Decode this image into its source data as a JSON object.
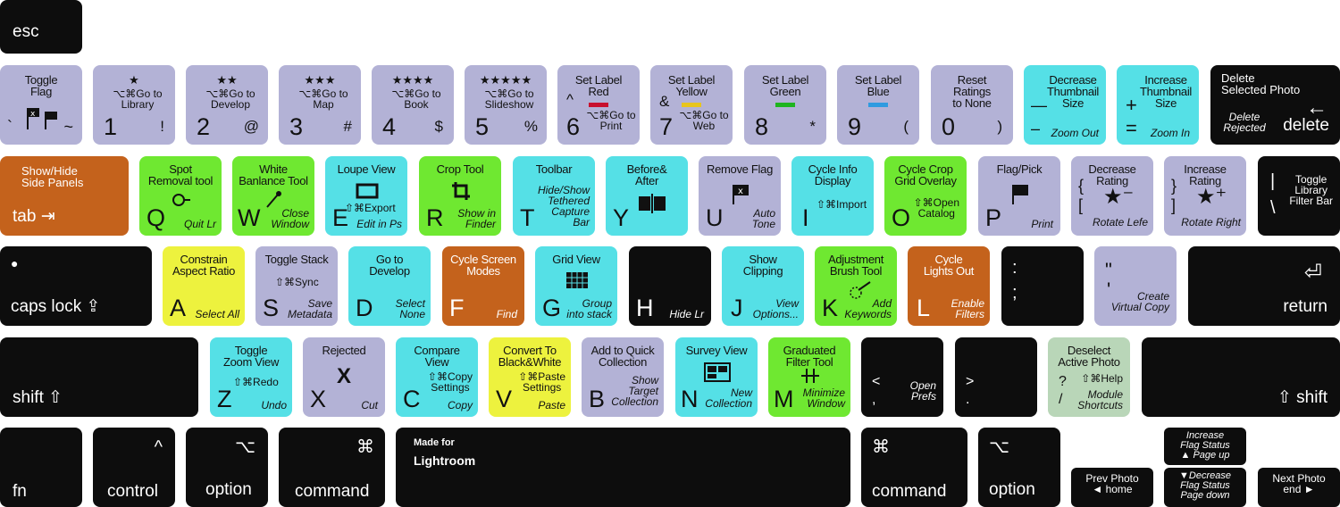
{
  "colors": {
    "black_key": "#0d0d0d",
    "purple_key": "#b3b2d6",
    "cyan_key": "#55e0e6",
    "green_key": "#6fe831",
    "yellow_key": "#edf23e",
    "orange_key": "#c4621c",
    "sage_key": "#b9d6b8",
    "red_label": "#c8102e",
    "yellow_label": "#e8c51e",
    "green_label": "#1fb51f",
    "blue_label": "#2f9be0"
  },
  "esc": {
    "label": "esc"
  },
  "row1": {
    "tilde": {
      "title": "Toggle\nFlag",
      "sym1": "`",
      "sym2": "~"
    },
    "k1": {
      "stars": "★",
      "shortcut": "⌥⌘Go to\nLibrary",
      "main": "1",
      "sym": "!"
    },
    "k2": {
      "stars": "★★",
      "shortcut": "⌥⌘Go to\nDevelop",
      "main": "2",
      "sym": "@"
    },
    "k3": {
      "stars": "★★★",
      "shortcut": "⌥⌘Go to\nMap",
      "main": "3",
      "sym": "#"
    },
    "k4": {
      "stars": "★★★★",
      "shortcut": "⌥⌘Go to\nBook",
      "main": "4",
      "sym": "$"
    },
    "k5": {
      "stars": "★★★★★",
      "shortcut": "⌥⌘Go to\nSlideshow",
      "main": "5",
      "sym": "%"
    },
    "k6": {
      "title": "Set Label\nRed",
      "sym": "^",
      "shortcut": "⌥⌘Go to\nPrint",
      "main": "6"
    },
    "k7": {
      "title": "Set Label\nYellow",
      "sym": "&",
      "shortcut": "⌥⌘Go to\nWeb",
      "main": "7"
    },
    "k8": {
      "title": "Set Label\nGreen",
      "main": "8",
      "sym": "*"
    },
    "k9": {
      "title": "Set Label\nBlue",
      "main": "9",
      "sym": "("
    },
    "k0": {
      "title": "Reset\nRatings\nto None",
      "main": "0",
      "sym": ")"
    },
    "minus": {
      "title": "Decrease\nThumbnail\nSize",
      "sym1": "—",
      "sym2": "–",
      "sub": "Zoom Out"
    },
    "equals": {
      "title": "Increase\nThumbnail\nSize",
      "sym1": "+",
      "sym2": "=",
      "sub": "Zoom In"
    },
    "delete": {
      "title": "Delete\nSelected Photo",
      "sub": "Delete\nRejected",
      "main": "delete",
      "arrow": "←"
    }
  },
  "row2": {
    "tab": {
      "title": "Show/Hide\nSide Panels",
      "main": "tab ⇥"
    },
    "q": {
      "title": "Spot\nRemoval tool",
      "main": "Q",
      "sub": "Quit Lr"
    },
    "w": {
      "title": "White\nBanlance Tool",
      "main": "W",
      "sub": "Close\nWindow"
    },
    "e": {
      "title": "Loupe View",
      "shortcut": "⇧⌘Export",
      "main": "E",
      "sub": "Edit in Ps"
    },
    "r": {
      "title": "Crop Tool",
      "main": "R",
      "sub": "Show in\nFinder"
    },
    "t": {
      "title": "Toolbar",
      "main": "T",
      "sub": "Hide/Show\nTethered\nCapture\nBar"
    },
    "y": {
      "title": "Before&\nAfter",
      "main": "Y"
    },
    "u": {
      "title": "Remove Flag",
      "main": "U",
      "sub": "Auto\nTone"
    },
    "i": {
      "title": "Cycle Info\nDisplay",
      "shortcut": "⇧⌘Import",
      "main": "I"
    },
    "o": {
      "title": "Cycle Crop\nGrid Overlay",
      "shortcut": "⇧⌘Open\nCatalog",
      "main": "O"
    },
    "p": {
      "title": "Flag/Pick",
      "main": "P",
      "sub": "Print"
    },
    "lbracket": {
      "title": "Decrease\nRating",
      "sym1": "{",
      "sym2": "[",
      "sub": "Rotate Lefe"
    },
    "rbracket": {
      "title": "Increase\nRating",
      "sym1": "}",
      "sym2": "]",
      "sub": "Rotate Right"
    },
    "backslash": {
      "title": "Toggle\nLibrary\nFilter Bar",
      "sym1": "|",
      "sym2": "\\"
    }
  },
  "row3": {
    "caps": {
      "main": "caps lock ⇪",
      "dot": "●"
    },
    "a": {
      "title": "Constrain\nAspect Ratio",
      "main": "A",
      "sub": "Select All"
    },
    "s": {
      "title": "Toggle Stack",
      "shortcut": "⇧⌘Sync",
      "main": "S",
      "sub": "Save\nMetadata"
    },
    "d": {
      "title": "Go to\nDevelop",
      "main": "D",
      "sub": "Select\nNone"
    },
    "f": {
      "title": "Cycle Screen\nModes",
      "main": "F",
      "sub": "Find"
    },
    "g": {
      "title": "Grid View",
      "main": "G",
      "sub": "Group\ninto stack"
    },
    "h": {
      "main": "H",
      "sub": "Hide Lr"
    },
    "j": {
      "title": "Show\nClipping",
      "main": "J",
      "sub": "View\nOptions..."
    },
    "k": {
      "title": "Adjustment\nBrush Tool",
      "main": "K",
      "sub": "Add\nKeywords"
    },
    "l": {
      "title": "Cycle\nLights Out",
      "main": "L",
      "sub": "Enable\nFilters"
    },
    "semicolon": {
      "sym1": ":",
      "sym2": ";"
    },
    "quote": {
      "sym1": "\"",
      "sym2": "'",
      "sub": "Create\nVirtual Copy"
    },
    "return": {
      "main": "return",
      "arrow": "⏎"
    }
  },
  "row4": {
    "lshift": {
      "main": "shift ⇧"
    },
    "z": {
      "title": "Toggle\nZoom View",
      "shortcut": "⇧⌘Redo",
      "main": "Z",
      "sub": "Undo"
    },
    "x": {
      "title": "Rejected",
      "icon": "X",
      "main": "X",
      "sub": "Cut"
    },
    "c": {
      "title": "Compare\nView",
      "shortcut": "⇧⌘Copy\nSettings",
      "main": "C",
      "sub": "Copy"
    },
    "v": {
      "title": "Convert To\nBlack&White",
      "shortcut": "⇧⌘Paste\nSettings",
      "main": "V",
      "sub": "Paste"
    },
    "b": {
      "title": "Add to Quick\nCollection",
      "main": "B",
      "sub": "Show\nTarget\nCollection"
    },
    "n": {
      "title": "Survey View",
      "main": "N",
      "sub": "New\nCollection"
    },
    "m": {
      "title": "Graduated\nFilter Tool",
      "main": "M",
      "sub": "Minimize\nWindow"
    },
    "comma": {
      "sym1": "<",
      "sym2": ",",
      "sub": "Open\nPrefs"
    },
    "period": {
      "sym1": ">",
      "sym2": "."
    },
    "slash": {
      "title": "Deselect\nActive Photo",
      "sym1": "?",
      "sym2": "/",
      "shortcut": "⇧⌘Help",
      "sub": "Module\nShortcuts"
    },
    "rshift": {
      "main": "⇧ shift"
    }
  },
  "row5": {
    "fn": {
      "main": "fn"
    },
    "lcontrol": {
      "sym": "^",
      "main": "control"
    },
    "loption": {
      "sym": "⌥",
      "main": "option"
    },
    "lcommand": {
      "sym": "⌘",
      "main": "command"
    },
    "space": {
      "line1": "Made for",
      "line2": "Lightroom"
    },
    "rcommand": {
      "sym": "⌘",
      "main": "command"
    },
    "roption": {
      "sym": "⌥",
      "main": "option"
    },
    "up": {
      "text": "Increase\nFlag Status\n▲ Page up"
    },
    "left": {
      "text": "Prev Photo\n◄ home"
    },
    "down": {
      "text": "▼Decrease\nFlag Status\nPage down"
    },
    "right": {
      "text": "Next Photo\nend ►"
    }
  }
}
